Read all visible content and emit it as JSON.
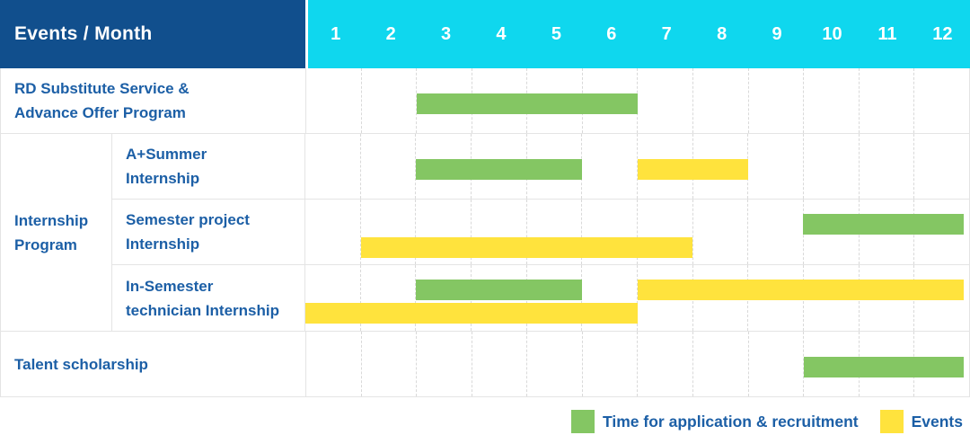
{
  "colors": {
    "navy": "#114F8D",
    "cyan": "#0FD7EE",
    "green": "#84C663",
    "yellow": "#FFE33D",
    "text_blue": "#1C5FA6",
    "grid_line": "#E4E4E4",
    "grid_dash": "#D9D9D9"
  },
  "header": {
    "corner_label": "Events / Month",
    "months": [
      "1",
      "2",
      "3",
      "4",
      "5",
      "6",
      "7",
      "8",
      "9",
      "10",
      "11",
      "12"
    ]
  },
  "rows": [
    {
      "label_lines": [
        "RD Substitute Service &",
        "Advance Offer Program"
      ]
    },
    {
      "group_lines": [
        "Internship",
        "Program"
      ],
      "children": [
        {
          "label_lines": [
            "A+Summer",
            "Internship"
          ]
        },
        {
          "label_lines": [
            "Semester project",
            "Internship"
          ]
        },
        {
          "label_lines": [
            "In-Semester",
            "technician Internship"
          ]
        }
      ]
    },
    {
      "label_lines": [
        "Talent scholarship"
      ]
    }
  ],
  "grid_rows": [
    {
      "bars": [
        {
          "color": "green",
          "start": 3,
          "end": 6,
          "lane": "single"
        }
      ]
    },
    {
      "bars": [
        {
          "color": "green",
          "start": 3,
          "end": 5,
          "lane": "single"
        },
        {
          "color": "yellow",
          "start": 7,
          "end": 8,
          "lane": "single"
        }
      ]
    },
    {
      "bars": [
        {
          "color": "green",
          "start": 10,
          "end": 12,
          "lane": "top"
        },
        {
          "color": "yellow",
          "start": 2,
          "end": 7,
          "lane": "bottom"
        }
      ]
    },
    {
      "bars": [
        {
          "color": "green",
          "start": 3,
          "end": 5,
          "lane": "top"
        },
        {
          "color": "yellow",
          "start": 7,
          "end": 12,
          "lane": "top"
        },
        {
          "color": "yellow",
          "start": 1,
          "end": 6,
          "lane": "bottom"
        }
      ]
    },
    {
      "bars": [
        {
          "color": "green",
          "start": 10,
          "end": 12,
          "lane": "single"
        }
      ]
    }
  ],
  "legend": {
    "items": [
      {
        "label": "Time for application & recruitment",
        "color_hex": "#84C663",
        "kind": "application-recruitment"
      },
      {
        "label": "Events",
        "color_hex": "#FFE33D",
        "kind": "events"
      }
    ]
  },
  "chart_data": {
    "type": "bar",
    "subtype": "gantt-timeline",
    "title": "Events / Month",
    "xlabel": "Month",
    "x_ticks": [
      1,
      2,
      3,
      4,
      5,
      6,
      7,
      8,
      9,
      10,
      11,
      12
    ],
    "xlim": [
      1,
      12
    ],
    "grid": "dashed-vertical-month-dividers",
    "legend_position": "bottom-right",
    "series_kinds": [
      {
        "kind": "application_recruitment",
        "label": "Time for application & recruitment",
        "color": "#84C663"
      },
      {
        "kind": "event",
        "label": "Events",
        "color": "#FFE33D"
      }
    ],
    "tasks": [
      {
        "group": null,
        "name": "RD Substitute Service & Advance Offer Program",
        "spans": [
          {
            "kind": "application_recruitment",
            "start_month": 3,
            "end_month": 6
          }
        ]
      },
      {
        "group": "Internship Program",
        "name": "A+Summer Internship",
        "spans": [
          {
            "kind": "application_recruitment",
            "start_month": 3,
            "end_month": 5
          },
          {
            "kind": "event",
            "start_month": 7,
            "end_month": 8
          }
        ]
      },
      {
        "group": "Internship Program",
        "name": "Semester project Internship",
        "spans": [
          {
            "kind": "application_recruitment",
            "start_month": 10,
            "end_month": 12
          },
          {
            "kind": "event",
            "start_month": 2,
            "end_month": 7
          }
        ]
      },
      {
        "group": "Internship Program",
        "name": "In-Semester technician Internship",
        "spans": [
          {
            "kind": "application_recruitment",
            "start_month": 3,
            "end_month": 5
          },
          {
            "kind": "event",
            "start_month": 7,
            "end_month": 12
          },
          {
            "kind": "event",
            "start_month": 1,
            "end_month": 6
          }
        ]
      },
      {
        "group": null,
        "name": "Talent scholarship",
        "spans": [
          {
            "kind": "application_recruitment",
            "start_month": 10,
            "end_month": 12
          }
        ]
      }
    ]
  }
}
